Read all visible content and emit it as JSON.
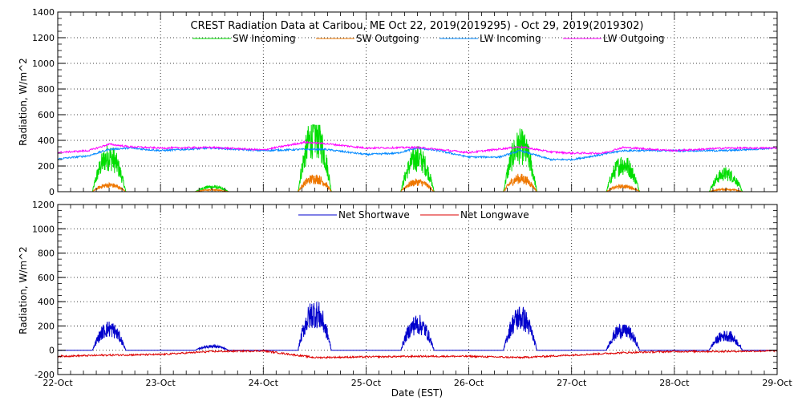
{
  "chart_data": [
    {
      "type": "line",
      "title": "CREST Radiation Data at Caribou, ME   Oct 22, 2019(2019295) - Oct 29, 2019(2019302)",
      "ylabel": "Radiation, W/m^2",
      "ylim": [
        0,
        1400
      ],
      "yticks": [
        0,
        200,
        400,
        600,
        800,
        1000,
        1200,
        1400
      ],
      "grid": true,
      "legend": "top",
      "series": [
        {
          "name": "SW Incoming",
          "color": "#00dd00",
          "peaks": [
            {
              "center": 0.5,
              "amp": 290,
              "peak": 390
            },
            {
              "center": 1.5,
              "amp": 40,
              "peak": 95
            },
            {
              "center": 2.5,
              "amp": 470,
              "peak": 520
            },
            {
              "center": 3.5,
              "amp": 280,
              "peak": 390
            },
            {
              "center": 4.5,
              "amp": 380,
              "peak": 500
            },
            {
              "center": 5.5,
              "amp": 230,
              "peak": 270
            },
            {
              "center": 6.5,
              "amp": 150,
              "peak": 200
            }
          ]
        },
        {
          "name": "SW Outgoing",
          "color": "#ee7700",
          "peaks": [
            {
              "center": 0.5,
              "amp": 55,
              "peak": 90
            },
            {
              "center": 1.5,
              "amp": 15,
              "peak": 30
            },
            {
              "center": 2.5,
              "amp": 110,
              "peak": 180
            },
            {
              "center": 3.5,
              "amp": 80,
              "peak": 120
            },
            {
              "center": 4.5,
              "amp": 110,
              "peak": 150
            },
            {
              "center": 5.5,
              "amp": 45,
              "peak": 55
            },
            {
              "center": 6.5,
              "amp": 20,
              "peak": 25
            }
          ]
        },
        {
          "name": "LW Incoming",
          "color": "#0088ff",
          "x": [
            0,
            0.3,
            0.5,
            0.7,
            1.0,
            1.5,
            2.0,
            2.4,
            2.6,
            3.0,
            3.3,
            3.5,
            3.7,
            4.0,
            4.3,
            4.5,
            4.8,
            5.0,
            5.3,
            5.5,
            6.0,
            6.5,
            7.0
          ],
          "y": [
            255,
            280,
            330,
            340,
            320,
            340,
            320,
            330,
            330,
            290,
            300,
            340,
            320,
            270,
            270,
            320,
            250,
            250,
            290,
            320,
            320,
            320,
            340
          ]
        },
        {
          "name": "LW Outgoing",
          "color": "#ff00ff",
          "x": [
            0,
            0.3,
            0.5,
            0.7,
            1.0,
            1.5,
            2.0,
            2.4,
            2.6,
            3.0,
            3.5,
            4.0,
            4.5,
            4.8,
            5.0,
            5.3,
            5.5,
            6.0,
            6.5,
            7.0
          ],
          "y": [
            305,
            320,
            370,
            350,
            340,
            345,
            325,
            385,
            375,
            340,
            345,
            305,
            350,
            310,
            300,
            300,
            345,
            320,
            340,
            340
          ]
        }
      ]
    },
    {
      "type": "line",
      "title": "",
      "xlabel": "Date (EST)",
      "ylabel": "Radiation, W/m^2",
      "ylim": [
        -200,
        1200
      ],
      "yticks": [
        -200,
        0,
        200,
        400,
        600,
        800,
        1000,
        1200
      ],
      "categories": [
        "22-Oct",
        "23-Oct",
        "24-Oct",
        "25-Oct",
        "26-Oct",
        "27-Oct",
        "28-Oct",
        "29-Oct"
      ],
      "grid": true,
      "legend": "top",
      "series": [
        {
          "name": "Net Shortwave",
          "color": "#0000cc",
          "peaks": [
            {
              "center": 0.5,
              "amp": 190,
              "peak": 270
            },
            {
              "center": 1.5,
              "amp": 35,
              "peak": 80
            },
            {
              "center": 2.5,
              "amp": 330,
              "peak": 400
            },
            {
              "center": 3.5,
              "amp": 230,
              "peak": 300
            },
            {
              "center": 4.5,
              "amp": 290,
              "peak": 370
            },
            {
              "center": 5.5,
              "amp": 180,
              "peak": 210
            },
            {
              "center": 6.5,
              "amp": 130,
              "peak": 160
            }
          ]
        },
        {
          "name": "Net Longwave",
          "color": "#dd0000",
          "x": [
            0,
            0.5,
            1.0,
            1.5,
            2.0,
            2.5,
            3.0,
            3.5,
            4.0,
            4.5,
            5.0,
            5.5,
            6.0,
            6.5,
            7.0
          ],
          "y": [
            -50,
            -40,
            -35,
            -10,
            -5,
            -60,
            -55,
            -50,
            -50,
            -60,
            -40,
            -20,
            -10,
            -10,
            -5
          ]
        }
      ]
    }
  ]
}
